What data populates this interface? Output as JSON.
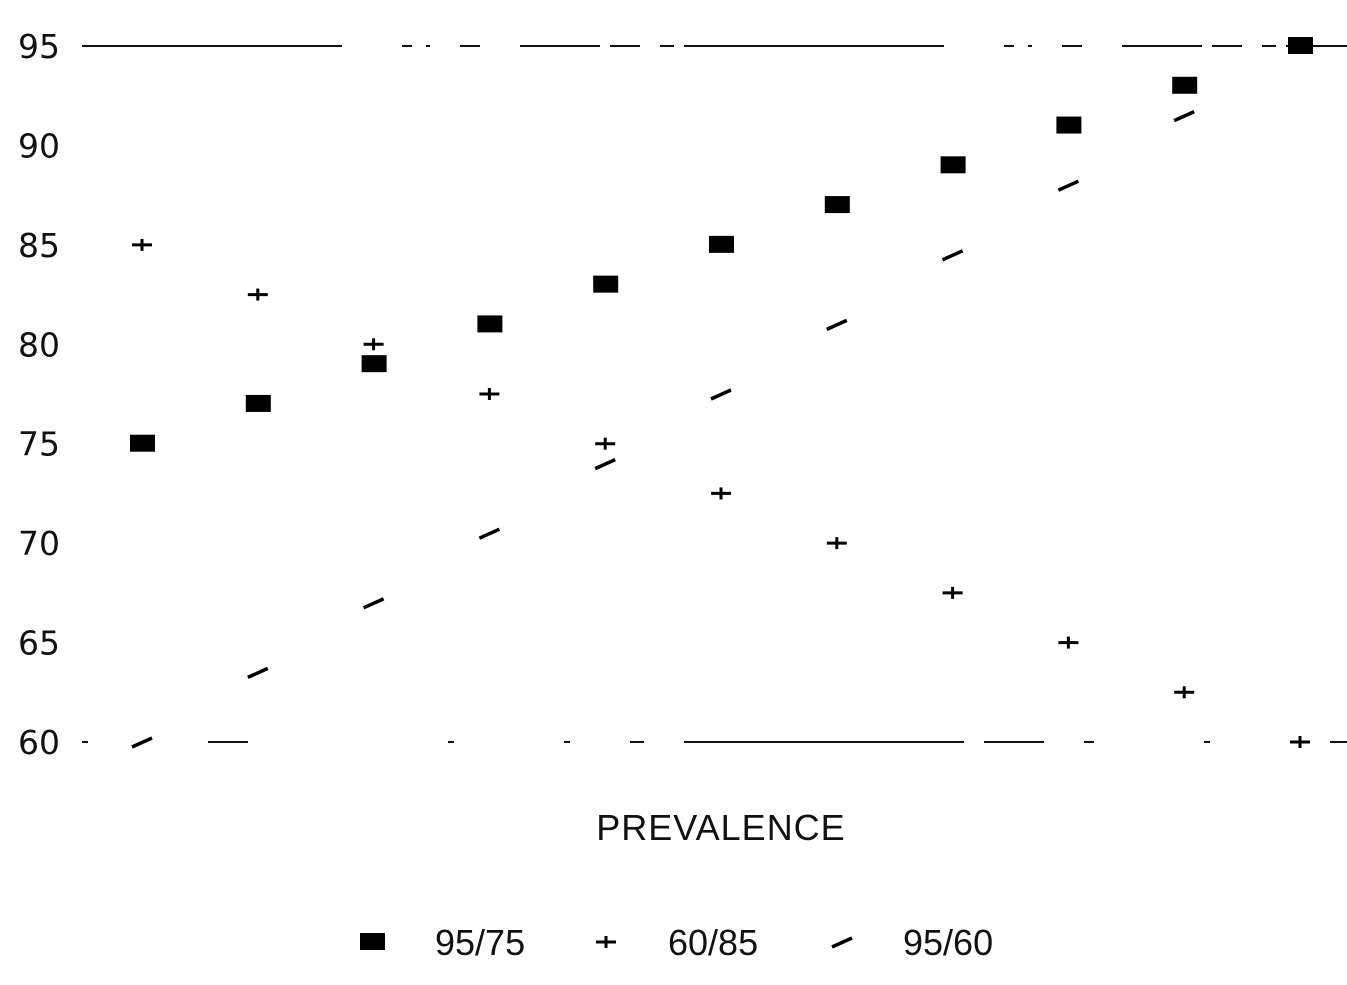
{
  "chart_data": {
    "type": "scatter",
    "title": "",
    "xlabel": "PREVALENCE",
    "ylabel": "",
    "x": [
      1,
      2,
      3,
      4,
      5,
      6,
      7,
      8,
      9,
      10,
      11
    ],
    "ylim": [
      60,
      95
    ],
    "yticks": [
      "95",
      "90",
      "85",
      "80",
      "75",
      "70",
      "65",
      "60"
    ],
    "grid": false,
    "legend_position": "bottom",
    "series": [
      {
        "name": "95/75",
        "marker": "square",
        "values": [
          75,
          77,
          79,
          81,
          83,
          85,
          87,
          89,
          91,
          93,
          95
        ]
      },
      {
        "name": "60/85",
        "marker": "plus",
        "values": [
          85,
          82.5,
          80,
          77.5,
          75,
          72.5,
          70,
          67.5,
          65,
          62.5,
          60
        ]
      },
      {
        "name": "95/60",
        "marker": "dash",
        "values": [
          60,
          63.5,
          67,
          70.5,
          74,
          77.5,
          81,
          84.5,
          88,
          91.5,
          95
        ]
      }
    ]
  }
}
